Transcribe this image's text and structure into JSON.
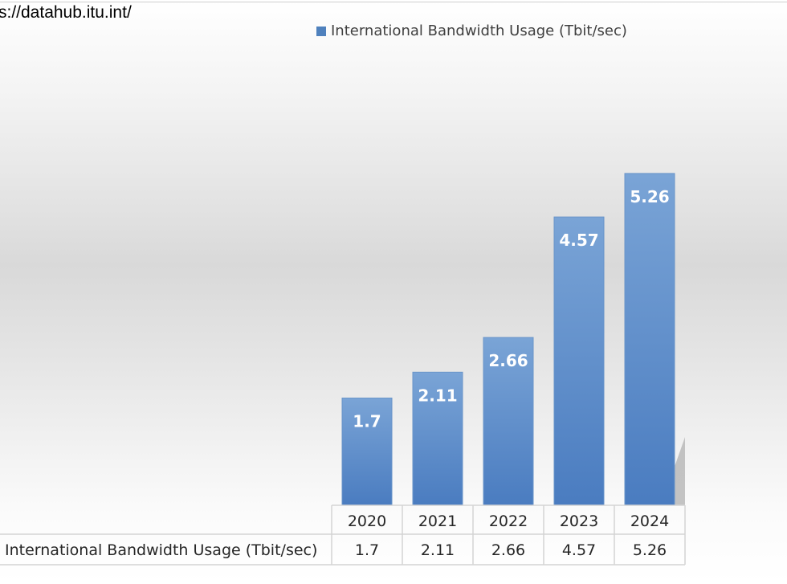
{
  "source": {
    "text": "s://datahub.itu.int/"
  },
  "chart_data": {
    "type": "bar",
    "categories": [
      "2020",
      "2021",
      "2022",
      "2023",
      "2024"
    ],
    "series": [
      {
        "name": "International Bandwidth Usage  (Tbit/sec)",
        "values": [
          1.7,
          2.11,
          2.66,
          4.57,
          5.26
        ],
        "data_labels": [
          "1.7",
          "2.11",
          "2.66",
          "4.57",
          "5.26"
        ]
      }
    ],
    "ylim": [
      0,
      7.5
    ],
    "grid": false,
    "legend": "top-right",
    "data_table": true,
    "colors": {
      "bar": "#4f81bd",
      "bar_light": "#7aa4d6",
      "bar_dark": "#4a7cc0",
      "data_label": "#ffffff",
      "table_border": "#d4d4d4"
    }
  }
}
